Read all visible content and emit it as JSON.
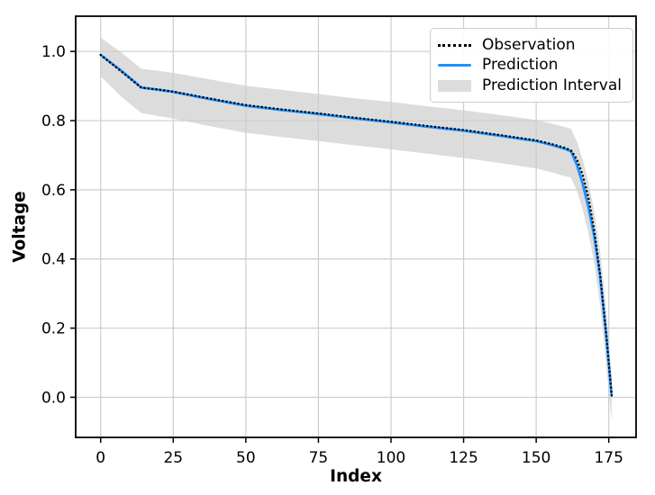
{
  "chart_data": {
    "type": "line",
    "title": "",
    "xlabel": "Index",
    "ylabel": "Voltage",
    "xlim": [
      -8.6,
      184.4
    ],
    "ylim": [
      -0.116,
      1.102
    ],
    "xticks": [
      0,
      25,
      50,
      75,
      100,
      125,
      150,
      175
    ],
    "xtick_labels": [
      "0",
      "25",
      "50",
      "75",
      "100",
      "125",
      "150",
      "175"
    ],
    "yticks": [
      0.0,
      0.2,
      0.4,
      0.6,
      0.8,
      1.0
    ],
    "ytick_labels": [
      "0.0",
      "0.2",
      "0.4",
      "0.6",
      "0.8",
      "1.0"
    ],
    "grid": true,
    "grid_color": "#cdcdcd",
    "legend_position": "upper right",
    "x": [
      0,
      7,
      14,
      20,
      25,
      37,
      50,
      62,
      75,
      87,
      100,
      112,
      125,
      137,
      150,
      156,
      160,
      162,
      164,
      166,
      168,
      170,
      172,
      174,
      176
    ],
    "series": [
      {
        "name": "Observation",
        "style": "dotted",
        "color": "#000000",
        "values": [
          0.99,
          0.943,
          0.895,
          0.89,
          0.884,
          0.865,
          0.845,
          0.833,
          0.821,
          0.809,
          0.797,
          0.785,
          0.773,
          0.759,
          0.743,
          0.731,
          0.721,
          0.714,
          0.688,
          0.643,
          0.578,
          0.482,
          0.358,
          0.193,
          0.005
        ]
      },
      {
        "name": "Prediction",
        "style": "solid",
        "color": "#1E90FF",
        "values": [
          0.99,
          0.945,
          0.896,
          0.889,
          0.883,
          0.863,
          0.843,
          0.831,
          0.819,
          0.807,
          0.795,
          0.783,
          0.771,
          0.757,
          0.741,
          0.728,
          0.718,
          0.711,
          0.672,
          0.618,
          0.55,
          0.465,
          0.35,
          0.19,
          0.005
        ]
      }
    ],
    "interval": {
      "name": "Prediction Interval",
      "color": "#dcdcdc",
      "upper": [
        1.04,
        0.998,
        0.95,
        0.944,
        0.938,
        0.92,
        0.901,
        0.889,
        0.877,
        0.865,
        0.854,
        0.842,
        0.83,
        0.817,
        0.802,
        0.79,
        0.781,
        0.776,
        0.74,
        0.688,
        0.622,
        0.538,
        0.425,
        0.265,
        0.058
      ],
      "lower": [
        0.928,
        0.87,
        0.822,
        0.813,
        0.806,
        0.785,
        0.765,
        0.753,
        0.741,
        0.729,
        0.717,
        0.705,
        0.692,
        0.678,
        0.662,
        0.649,
        0.639,
        0.635,
        0.597,
        0.543,
        0.475,
        0.388,
        0.27,
        0.105,
        -0.07
      ]
    }
  }
}
